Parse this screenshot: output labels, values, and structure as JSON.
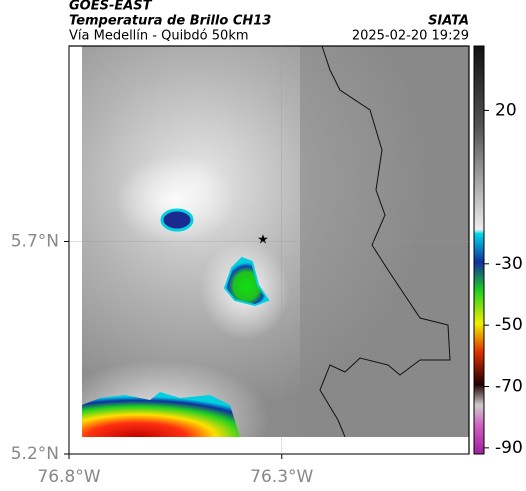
{
  "header": {
    "title": "GOES-EAST",
    "subtitle": "Temperatura de Brillo CH13",
    "region": "Vía Medellín - Quibdó 50km",
    "source": "SIATA",
    "datetime": "2025-02-20 19:29"
  },
  "map": {
    "xlim": [
      -76.8,
      -75.86
    ],
    "ylim": [
      5.2,
      6.16
    ],
    "xticks": [
      {
        "value": -76.8,
        "label": "76.8°W"
      },
      {
        "value": -76.3,
        "label": "76.3°W"
      }
    ],
    "yticks": [
      {
        "value": 5.7,
        "label": "5.7°N"
      },
      {
        "value": 5.2,
        "label": "5.2°N"
      }
    ],
    "grid": true
  },
  "colorbar": {
    "lim": [
      -92,
      41
    ],
    "ticks": [
      20,
      -30,
      -50,
      -70,
      -90
    ]
  }
}
